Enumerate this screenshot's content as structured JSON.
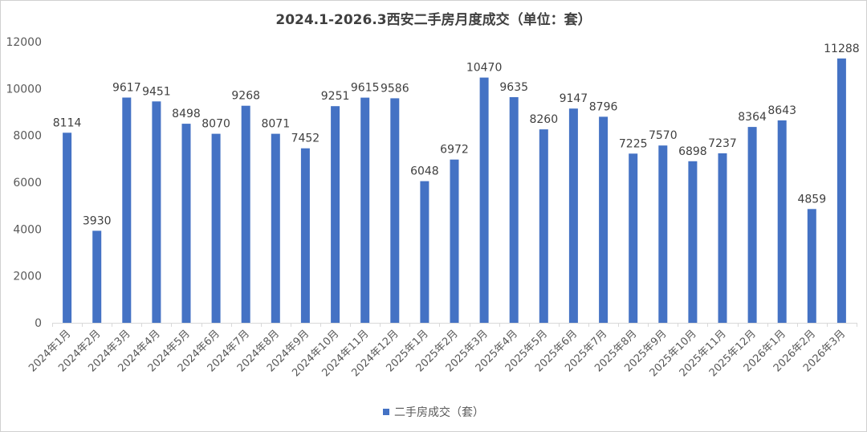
{
  "chart_data": {
    "type": "bar",
    "title": "2024.1-2026.3西安二手房月度成交（单位：套）",
    "xlabel": "",
    "ylabel": "",
    "ylim": [
      0,
      12000
    ],
    "yticks": [
      0,
      2000,
      4000,
      6000,
      8000,
      10000,
      12000
    ],
    "grid": false,
    "legend_position": "bottom",
    "color": "#4472C4",
    "categories": [
      "2024年1月",
      "2024年2月",
      "2024年3月",
      "2024年4月",
      "2024年5月",
      "2024年6月",
      "2024年7月",
      "2024年8月",
      "2024年9月",
      "2024年10月",
      "2024年11月",
      "2024年12月",
      "2025年1月",
      "2025年2月",
      "2025年3月",
      "2025年4月",
      "2025年5月",
      "2025年6月",
      "2025年7月",
      "2025年8月",
      "2025年9月",
      "2025年10月",
      "2025年11月",
      "2025年12月",
      "2026年1月",
      "2026年2月",
      "2026年3月"
    ],
    "series": [
      {
        "name": "二手房成交（套）",
        "values": [
          8114,
          3930,
          9617,
          9451,
          8498,
          8070,
          9268,
          8071,
          7452,
          9251,
          9615,
          9586,
          6048,
          6972,
          10470,
          9635,
          8260,
          9147,
          8796,
          7225,
          7570,
          6898,
          7237,
          8364,
          8643,
          4859,
          11288
        ]
      }
    ]
  }
}
